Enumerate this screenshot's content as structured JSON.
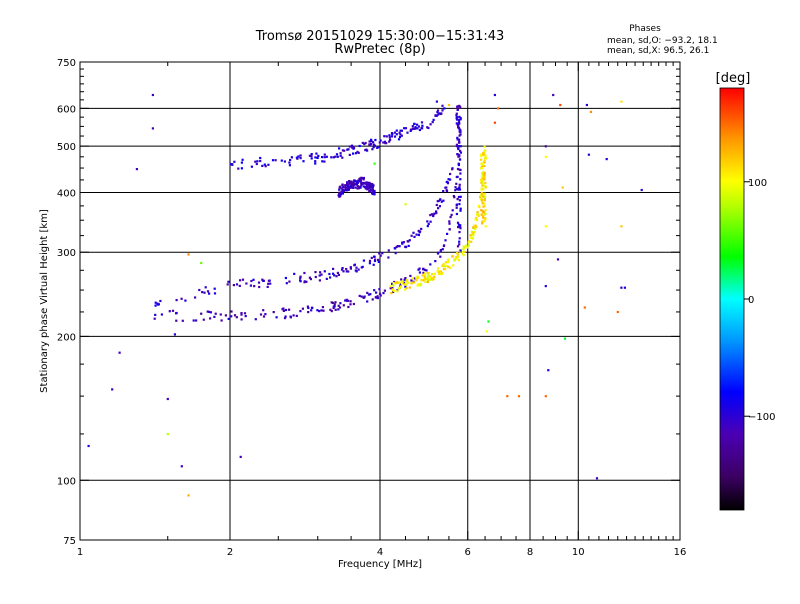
{
  "chart_data": {
    "type": "scatter",
    "title": "Tromsø 20151029 15:30:00−15:31:43",
    "subtitle": "RwPretec (8p)",
    "xlabel": "Frequency [MHz]",
    "ylabel": "Stationary phase Virtual Height [km]",
    "x_scale": "log",
    "y_scale": "log",
    "xlim": [
      1,
      16
    ],
    "ylim": [
      75,
      750
    ],
    "x_ticks": [
      1,
      2,
      4,
      6,
      8,
      10,
      16
    ],
    "x_tick_labels": [
      "1",
      "2",
      "4",
      "6",
      "8",
      "10",
      "16"
    ],
    "y_ticks": [
      75,
      100,
      200,
      300,
      400,
      500,
      600,
      750
    ],
    "y_tick_labels": [
      "75",
      "100",
      "200",
      "300",
      "400",
      "500",
      "600",
      "750"
    ],
    "grid": true,
    "stats": {
      "heading": "Phases",
      "line1": "mean, sd,O: −93.2, 18.1",
      "line2": "mean, sd,X:  96.5, 26.1"
    },
    "colorbar": {
      "label": "[deg]",
      "min": -180,
      "max": 180,
      "tick_values": [
        100,
        0,
        -100
      ],
      "tick_labels": [
        "100",
        "0",
        "−100"
      ]
    },
    "traces": {
      "o_mode_lower": {
        "phase": -110,
        "points": [
          [
            1.4,
            222
          ],
          [
            1.6,
            221
          ],
          [
            2.0,
            221
          ],
          [
            2.5,
            223
          ],
          [
            3.0,
            228
          ],
          [
            3.5,
            236
          ],
          [
            4.0,
            247
          ],
          [
            4.5,
            260
          ],
          [
            5.0,
            278
          ],
          [
            5.3,
            300
          ],
          [
            5.55,
            350
          ],
          [
            5.7,
            420
          ],
          [
            5.8,
            520
          ],
          [
            5.85,
            600
          ]
        ]
      },
      "o_mode_upper": {
        "phase": -105,
        "points": [
          [
            1.4,
            232
          ],
          [
            1.7,
            245
          ],
          [
            2.0,
            255
          ],
          [
            2.5,
            262
          ],
          [
            3.0,
            268
          ],
          [
            3.5,
            278
          ],
          [
            4.0,
            292
          ],
          [
            4.5,
            310
          ],
          [
            5.0,
            345
          ],
          [
            5.4,
            400
          ],
          [
            5.65,
            470
          ]
        ]
      },
      "x_mode": {
        "phase": 105,
        "points": [
          [
            4.2,
            252
          ],
          [
            4.6,
            258
          ],
          [
            5.0,
            266
          ],
          [
            5.4,
            280
          ],
          [
            5.8,
            296
          ],
          [
            6.1,
            320
          ],
          [
            6.3,
            360
          ],
          [
            6.4,
            410
          ],
          [
            6.45,
            460
          ],
          [
            6.5,
            500
          ]
        ]
      },
      "f2_echo": {
        "phase": -100,
        "points": [
          [
            2.0,
            458
          ],
          [
            2.3,
            461
          ],
          [
            2.6,
            465
          ],
          [
            3.0,
            472
          ],
          [
            3.5,
            490
          ],
          [
            4.0,
            510
          ],
          [
            4.5,
            535
          ],
          [
            5.0,
            560
          ],
          [
            5.4,
            600
          ]
        ]
      },
      "band_400": {
        "phase": -110,
        "points": [
          [
            3.3,
            400
          ],
          [
            3.4,
            412
          ],
          [
            3.7,
            420
          ],
          [
            3.9,
            405
          ]
        ]
      }
    },
    "scatter_points": [
      [
        1.04,
        118,
        -95
      ],
      [
        1.4,
        640,
        -105
      ],
      [
        1.4,
        545,
        -110
      ],
      [
        1.3,
        448,
        -110
      ],
      [
        1.2,
        185,
        -110
      ],
      [
        1.16,
        155,
        -105
      ],
      [
        1.5,
        148,
        -110
      ],
      [
        1.5,
        125,
        80
      ],
      [
        1.6,
        107,
        -110
      ],
      [
        1.65,
        93,
        130
      ],
      [
        1.55,
        202,
        -100
      ],
      [
        1.65,
        297,
        140
      ],
      [
        2.1,
        112,
        -110
      ],
      [
        1.75,
        285,
        60
      ],
      [
        3.9,
        460,
        50
      ],
      [
        5.2,
        620,
        -100
      ],
      [
        5.5,
        610,
        120
      ],
      [
        6.8,
        640,
        -95
      ],
      [
        6.9,
        600,
        150
      ],
      [
        8.9,
        640,
        -110
      ],
      [
        9.2,
        610,
        160
      ],
      [
        10.4,
        610,
        -100
      ],
      [
        10.6,
        590,
        140
      ],
      [
        10.5,
        480,
        -100
      ],
      [
        8.6,
        500,
        -130
      ],
      [
        8.6,
        475,
        100
      ],
      [
        8.6,
        340,
        100
      ],
      [
        9.3,
        410,
        120
      ],
      [
        9.1,
        290,
        -110
      ],
      [
        8.6,
        255,
        -100
      ],
      [
        8.7,
        170,
        -95
      ],
      [
        8.6,
        150,
        150
      ],
      [
        7.2,
        150,
        150
      ],
      [
        7.6,
        150,
        150
      ],
      [
        9.4,
        198,
        30
      ],
      [
        10.9,
        101,
        -110
      ],
      [
        12.2,
        620,
        110
      ],
      [
        12.2,
        340,
        120
      ],
      [
        12.2,
        253,
        -90
      ],
      [
        12.4,
        253,
        -90
      ],
      [
        12.0,
        225,
        150
      ],
      [
        13.4,
        405,
        -100
      ],
      [
        10.3,
        230,
        150
      ],
      [
        6.6,
        215,
        30
      ],
      [
        6.55,
        205,
        100
      ],
      [
        4.5,
        378,
        90
      ],
      [
        6.8,
        560,
        160
      ],
      [
        11.4,
        470,
        -95
      ]
    ]
  }
}
